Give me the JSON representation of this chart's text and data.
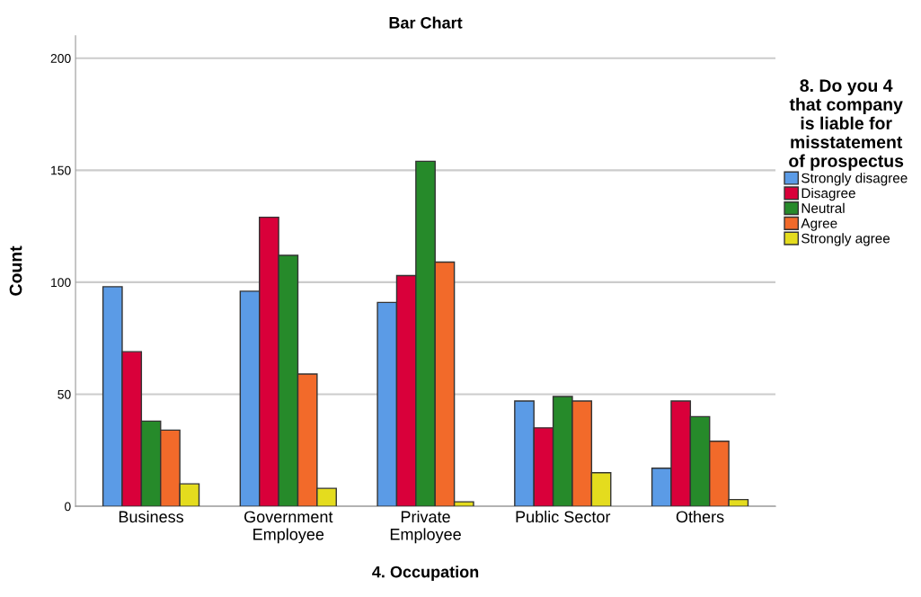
{
  "chart_data": {
    "type": "bar",
    "title": "Bar Chart",
    "xlabel": "4. Occupation",
    "ylabel": "Count",
    "legend_title": "8. Do you 4\nthat company\nis liable for\nmisstatement\nof prospectus",
    "categories": [
      "Business",
      "Government\nEmployee",
      "Private\nEmployee",
      "Public Sector",
      "Others"
    ],
    "series": [
      {
        "name": "Strongly disagree",
        "color": "#5b9be6",
        "values": [
          98,
          96,
          91,
          47,
          17
        ]
      },
      {
        "name": "Disagree",
        "color": "#d9003a",
        "values": [
          69,
          129,
          103,
          35,
          47
        ]
      },
      {
        "name": "Neutral",
        "color": "#268a2a",
        "values": [
          38,
          112,
          154,
          49,
          40
        ]
      },
      {
        "name": "Agree",
        "color": "#f26a2a",
        "values": [
          34,
          59,
          109,
          47,
          29
        ]
      },
      {
        "name": "Strongly agree",
        "color": "#e4dc1e",
        "values": [
          10,
          8,
          2,
          15,
          3
        ]
      }
    ],
    "ylim": [
      0,
      210
    ],
    "yticks": [
      0,
      50,
      100,
      150,
      200
    ],
    "grid": "y",
    "legend": "top right"
  }
}
